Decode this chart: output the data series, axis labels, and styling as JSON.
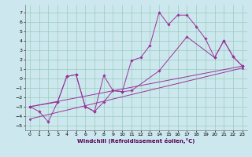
{
  "xlabel": "Windchill (Refroidissement éolien,°C)",
  "background_color": "#cce8ee",
  "grid_color": "#99ccbb",
  "line_color": "#993399",
  "xlim": [
    -0.5,
    23.5
  ],
  "ylim": [
    -5.5,
    7.8
  ],
  "yticks": [
    -5,
    -4,
    -3,
    -2,
    -1,
    0,
    1,
    2,
    3,
    4,
    5,
    6,
    7
  ],
  "xticks": [
    0,
    1,
    2,
    3,
    4,
    5,
    6,
    7,
    8,
    9,
    10,
    11,
    12,
    13,
    14,
    15,
    16,
    17,
    18,
    19,
    20,
    21,
    22,
    23
  ],
  "line1_x": [
    0,
    1,
    2,
    3,
    4,
    5,
    6,
    7,
    8,
    9,
    10,
    11,
    12,
    13,
    14,
    15,
    16,
    17,
    18,
    19,
    20,
    21,
    22,
    23
  ],
  "line1_y": [
    -3.0,
    -3.5,
    -4.6,
    -2.5,
    0.2,
    0.4,
    -3.0,
    -3.5,
    0.3,
    -1.3,
    -1.4,
    1.9,
    2.2,
    3.5,
    7.0,
    5.7,
    6.7,
    6.7,
    5.5,
    4.2,
    2.2,
    4.0,
    2.3,
    1.3
  ],
  "line2_x": [
    0,
    3,
    4,
    5,
    6,
    7,
    8,
    9,
    10,
    11,
    14,
    17,
    20,
    21,
    22,
    23
  ],
  "line2_y": [
    -3.0,
    -2.5,
    0.2,
    0.4,
    -3.0,
    -3.5,
    -2.5,
    -1.3,
    -1.4,
    -1.3,
    0.8,
    4.4,
    2.2,
    4.0,
    2.3,
    1.3
  ],
  "line3_x": [
    0,
    23
  ],
  "line3_y": [
    -3.0,
    1.3
  ],
  "line4_x": [
    0,
    23
  ],
  "line4_y": [
    -4.3,
    1.1
  ]
}
